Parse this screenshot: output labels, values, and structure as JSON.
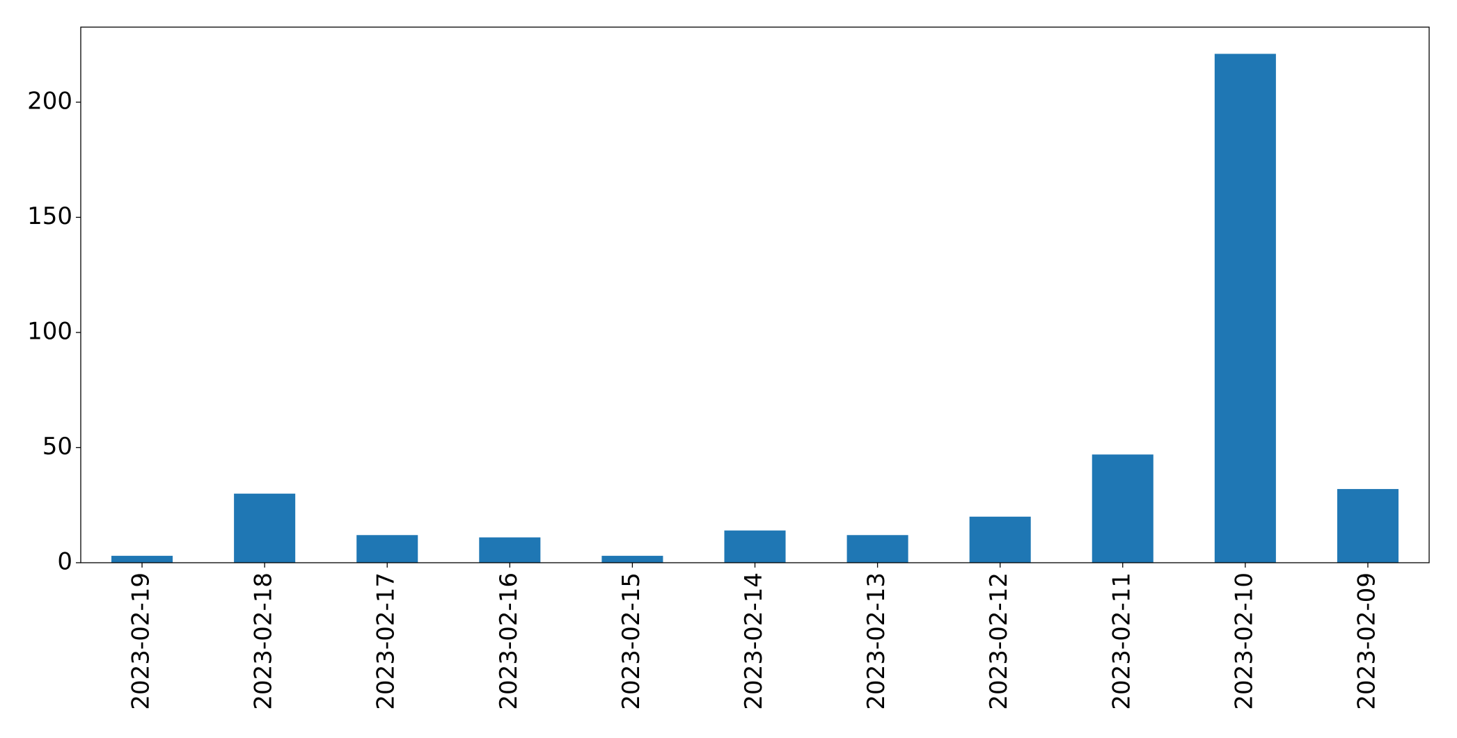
{
  "chart_data": {
    "type": "bar",
    "categories": [
      "2023-02-19",
      "2023-02-18",
      "2023-02-17",
      "2023-02-16",
      "2023-02-15",
      "2023-02-14",
      "2023-02-13",
      "2023-02-12",
      "2023-02-11",
      "2023-02-10",
      "2023-02-09"
    ],
    "values": [
      3,
      30,
      12,
      11,
      3,
      14,
      12,
      20,
      47,
      221,
      32
    ],
    "color": "#1f77b4",
    "ylim": [
      0,
      232.6
    ],
    "yticks": [
      0,
      50,
      100,
      150,
      200
    ],
    "grid": false
  }
}
